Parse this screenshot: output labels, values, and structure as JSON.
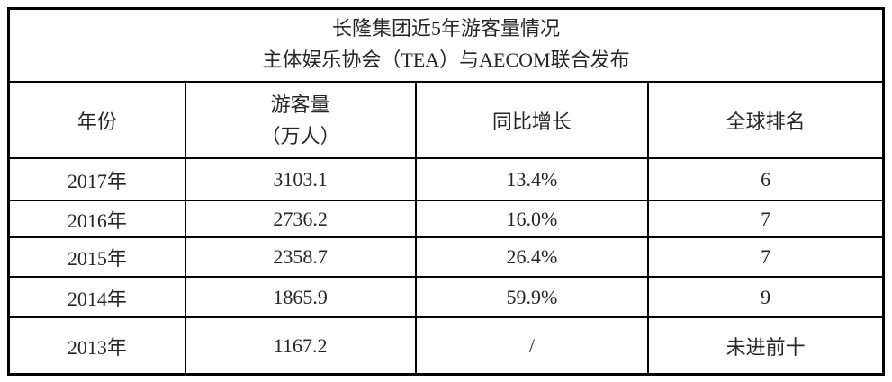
{
  "chart_data": {
    "type": "table",
    "title": "长隆集团近5年游客量情况",
    "subtitle": "主体娱乐协会（TEA）与AECOM联合发布",
    "columns": [
      "年份",
      "游客量（万人）",
      "同比增长",
      "全球排名"
    ],
    "rows": [
      [
        "2017年",
        "3103.1",
        "13.4%",
        "6"
      ],
      [
        "2016年",
        "2736.2",
        "16.0%",
        "7"
      ],
      [
        "2015年",
        "2358.7",
        "26.4%",
        "7"
      ],
      [
        "2014年",
        "1865.9",
        "59.9%",
        "9"
      ],
      [
        "2013年",
        "1167.2",
        "/",
        "未进前十"
      ]
    ],
    "series": [
      {
        "name": "游客量（万人）",
        "x": [
          2017,
          2016,
          2015,
          2014,
          2013
        ],
        "values": [
          3103.1,
          2736.2,
          2358.7,
          1865.9,
          1167.2
        ]
      },
      {
        "name": "同比增长(%)",
        "x": [
          2017,
          2016,
          2015,
          2014
        ],
        "values": [
          13.4,
          16.0,
          26.4,
          59.9
        ]
      },
      {
        "name": "全球排名",
        "x": [
          2017,
          2016,
          2015,
          2014
        ],
        "values": [
          6,
          7,
          7,
          9
        ]
      }
    ],
    "layout_hints": {
      "grid": "on",
      "caption_position": "top-center"
    }
  },
  "header": {
    "year": "年份",
    "visitors_line1": "游客量",
    "visitors_line2": "（万人）",
    "growth": "同比增长",
    "rank": "全球排名"
  },
  "colors": {
    "border": "#000000",
    "text": "#262626",
    "background": "#ffffff"
  }
}
